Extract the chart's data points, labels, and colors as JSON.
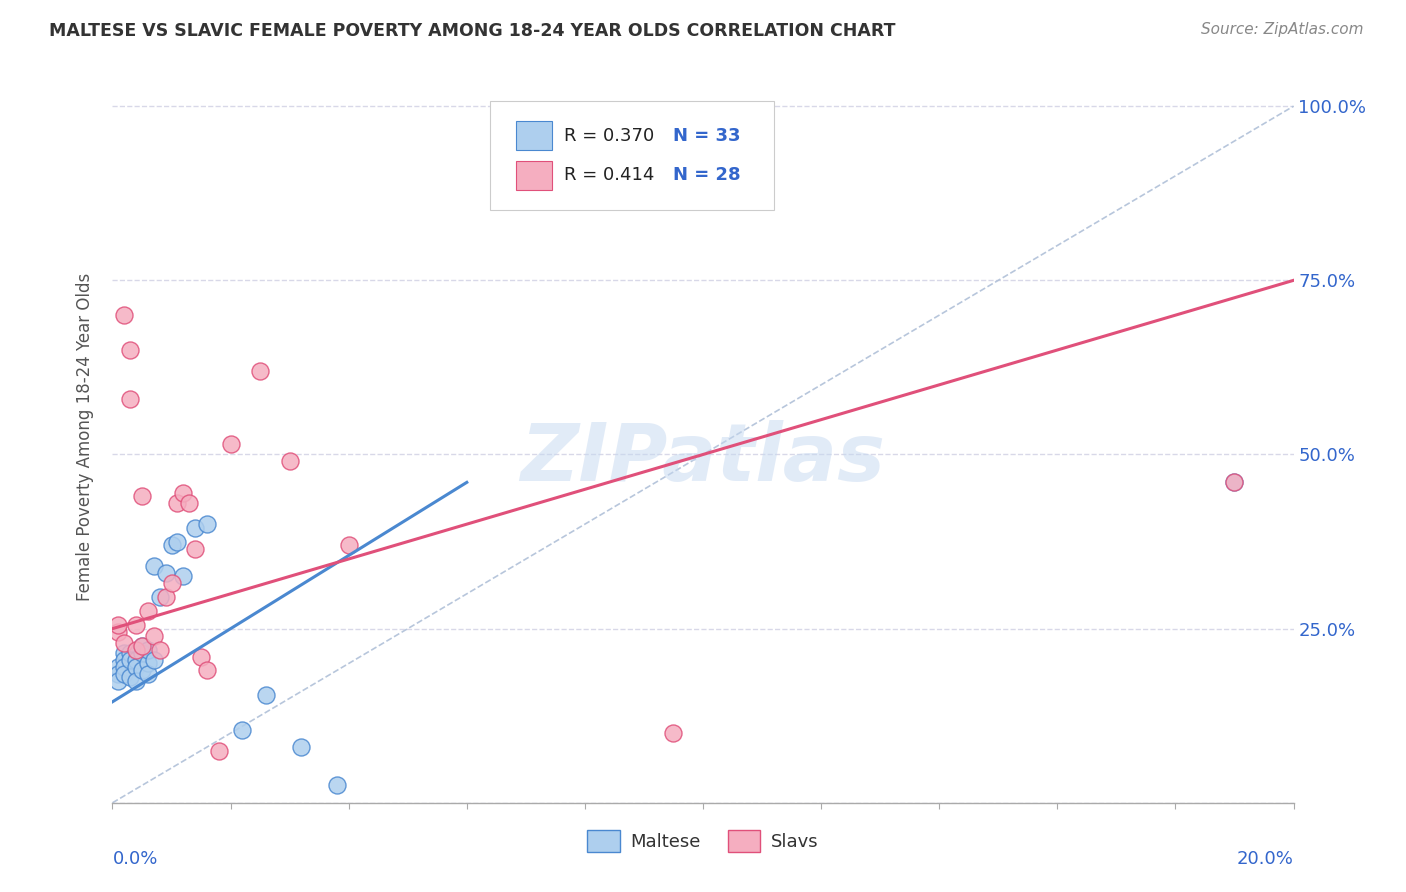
{
  "title": "MALTESE VS SLAVIC FEMALE POVERTY AMONG 18-24 YEAR OLDS CORRELATION CHART",
  "source": "Source: ZipAtlas.com",
  "ylabel": "Female Poverty Among 18-24 Year Olds",
  "watermark": "ZIPatlas",
  "legend_maltese_r": "R = 0.370",
  "legend_maltese_n": "N = 33",
  "legend_slavs_r": "R = 0.414",
  "legend_slavs_n": "N = 28",
  "maltese_color": "#aecfee",
  "slavs_color": "#f5aec0",
  "maltese_line_color": "#4a88d0",
  "slavs_line_color": "#e0507a",
  "legend_r_color": "#222222",
  "legend_n_color": "#3366cc",
  "grid_color": "#d8d8e8",
  "ref_line_color": "#b0c0d8",
  "maltese_x": [
    0.001,
    0.001,
    0.001,
    0.002,
    0.002,
    0.002,
    0.002,
    0.003,
    0.003,
    0.003,
    0.004,
    0.004,
    0.004,
    0.005,
    0.005,
    0.005,
    0.006,
    0.006,
    0.006,
    0.007,
    0.007,
    0.008,
    0.009,
    0.01,
    0.011,
    0.012,
    0.014,
    0.016,
    0.022,
    0.026,
    0.032,
    0.038,
    0.19
  ],
  "maltese_y": [
    0.195,
    0.185,
    0.175,
    0.215,
    0.205,
    0.195,
    0.185,
    0.215,
    0.205,
    0.18,
    0.205,
    0.195,
    0.175,
    0.225,
    0.215,
    0.19,
    0.2,
    0.22,
    0.185,
    0.205,
    0.34,
    0.295,
    0.33,
    0.37,
    0.375,
    0.325,
    0.395,
    0.4,
    0.105,
    0.155,
    0.08,
    0.025,
    0.46
  ],
  "slavs_x": [
    0.001,
    0.001,
    0.002,
    0.002,
    0.003,
    0.003,
    0.004,
    0.004,
    0.005,
    0.005,
    0.006,
    0.007,
    0.008,
    0.009,
    0.01,
    0.011,
    0.012,
    0.013,
    0.014,
    0.015,
    0.016,
    0.018,
    0.02,
    0.025,
    0.03,
    0.04,
    0.095,
    0.19
  ],
  "slavs_y": [
    0.245,
    0.255,
    0.23,
    0.7,
    0.65,
    0.58,
    0.22,
    0.255,
    0.225,
    0.44,
    0.275,
    0.24,
    0.22,
    0.295,
    0.315,
    0.43,
    0.445,
    0.43,
    0.365,
    0.21,
    0.19,
    0.075,
    0.515,
    0.62,
    0.49,
    0.37,
    0.1,
    0.46
  ],
  "xmin": 0.0,
  "xmax": 0.2,
  "ymin": 0.0,
  "ymax": 1.05,
  "ytick_pos": [
    0.0,
    0.25,
    0.5,
    0.75,
    1.0
  ],
  "ytick_labels": [
    "",
    "25.0%",
    "50.0%",
    "75.0%",
    "100.0%"
  ]
}
